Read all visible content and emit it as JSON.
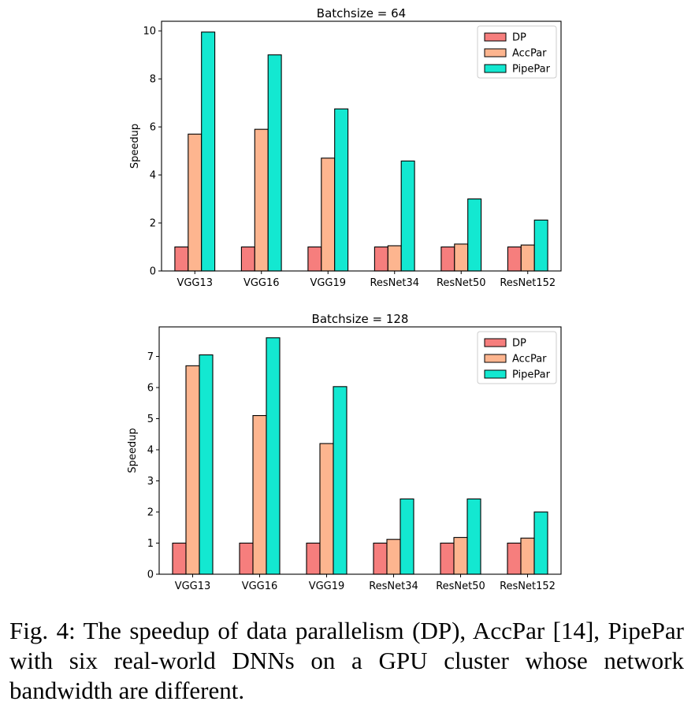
{
  "chart_data": [
    {
      "type": "bar",
      "title": "Batchsize = 64",
      "xlabel": "",
      "ylabel": "Speedup",
      "categories": [
        "VGG13",
        "VGG16",
        "VGG19",
        "ResNet34",
        "ResNet50",
        "ResNet152"
      ],
      "ylim": [
        0,
        10.4
      ],
      "yticks": [
        0,
        2,
        4,
        6,
        8,
        10
      ],
      "legend_position": "top-right",
      "grid": false,
      "series": [
        {
          "name": "DP",
          "color": "#f67e7d",
          "values": [
            1,
            1,
            1,
            1,
            1,
            1
          ]
        },
        {
          "name": "AccPar",
          "color": "#fdb58f",
          "values": [
            5.7,
            5.9,
            4.7,
            1.05,
            1.12,
            1.08
          ]
        },
        {
          "name": "PipePar",
          "color": "#13e8d1",
          "values": [
            9.95,
            9.0,
            6.75,
            4.58,
            3.0,
            2.12
          ]
        }
      ]
    },
    {
      "type": "bar",
      "title": "Batchsize = 128",
      "xlabel": "",
      "ylabel": "Speedup",
      "categories": [
        "VGG13",
        "VGG16",
        "VGG19",
        "ResNet34",
        "ResNet50",
        "ResNet152"
      ],
      "ylim": [
        0,
        7.95
      ],
      "yticks": [
        0,
        1,
        2,
        3,
        4,
        5,
        6,
        7
      ],
      "legend_position": "top-right",
      "grid": false,
      "series": [
        {
          "name": "DP",
          "color": "#f67e7d",
          "values": [
            1,
            1,
            1,
            1,
            1,
            1
          ]
        },
        {
          "name": "AccPar",
          "color": "#fdb58f",
          "values": [
            6.7,
            5.1,
            4.2,
            1.12,
            1.18,
            1.16
          ]
        },
        {
          "name": "PipePar",
          "color": "#13e8d1",
          "values": [
            7.05,
            7.6,
            6.03,
            2.42,
            2.42,
            2.0
          ]
        }
      ]
    }
  ],
  "caption": "Fig. 4: The speedup of data parallelism (DP), AccPar [14], PipePar with six real-world DNNs on a GPU cluster whose network bandwidth are different."
}
